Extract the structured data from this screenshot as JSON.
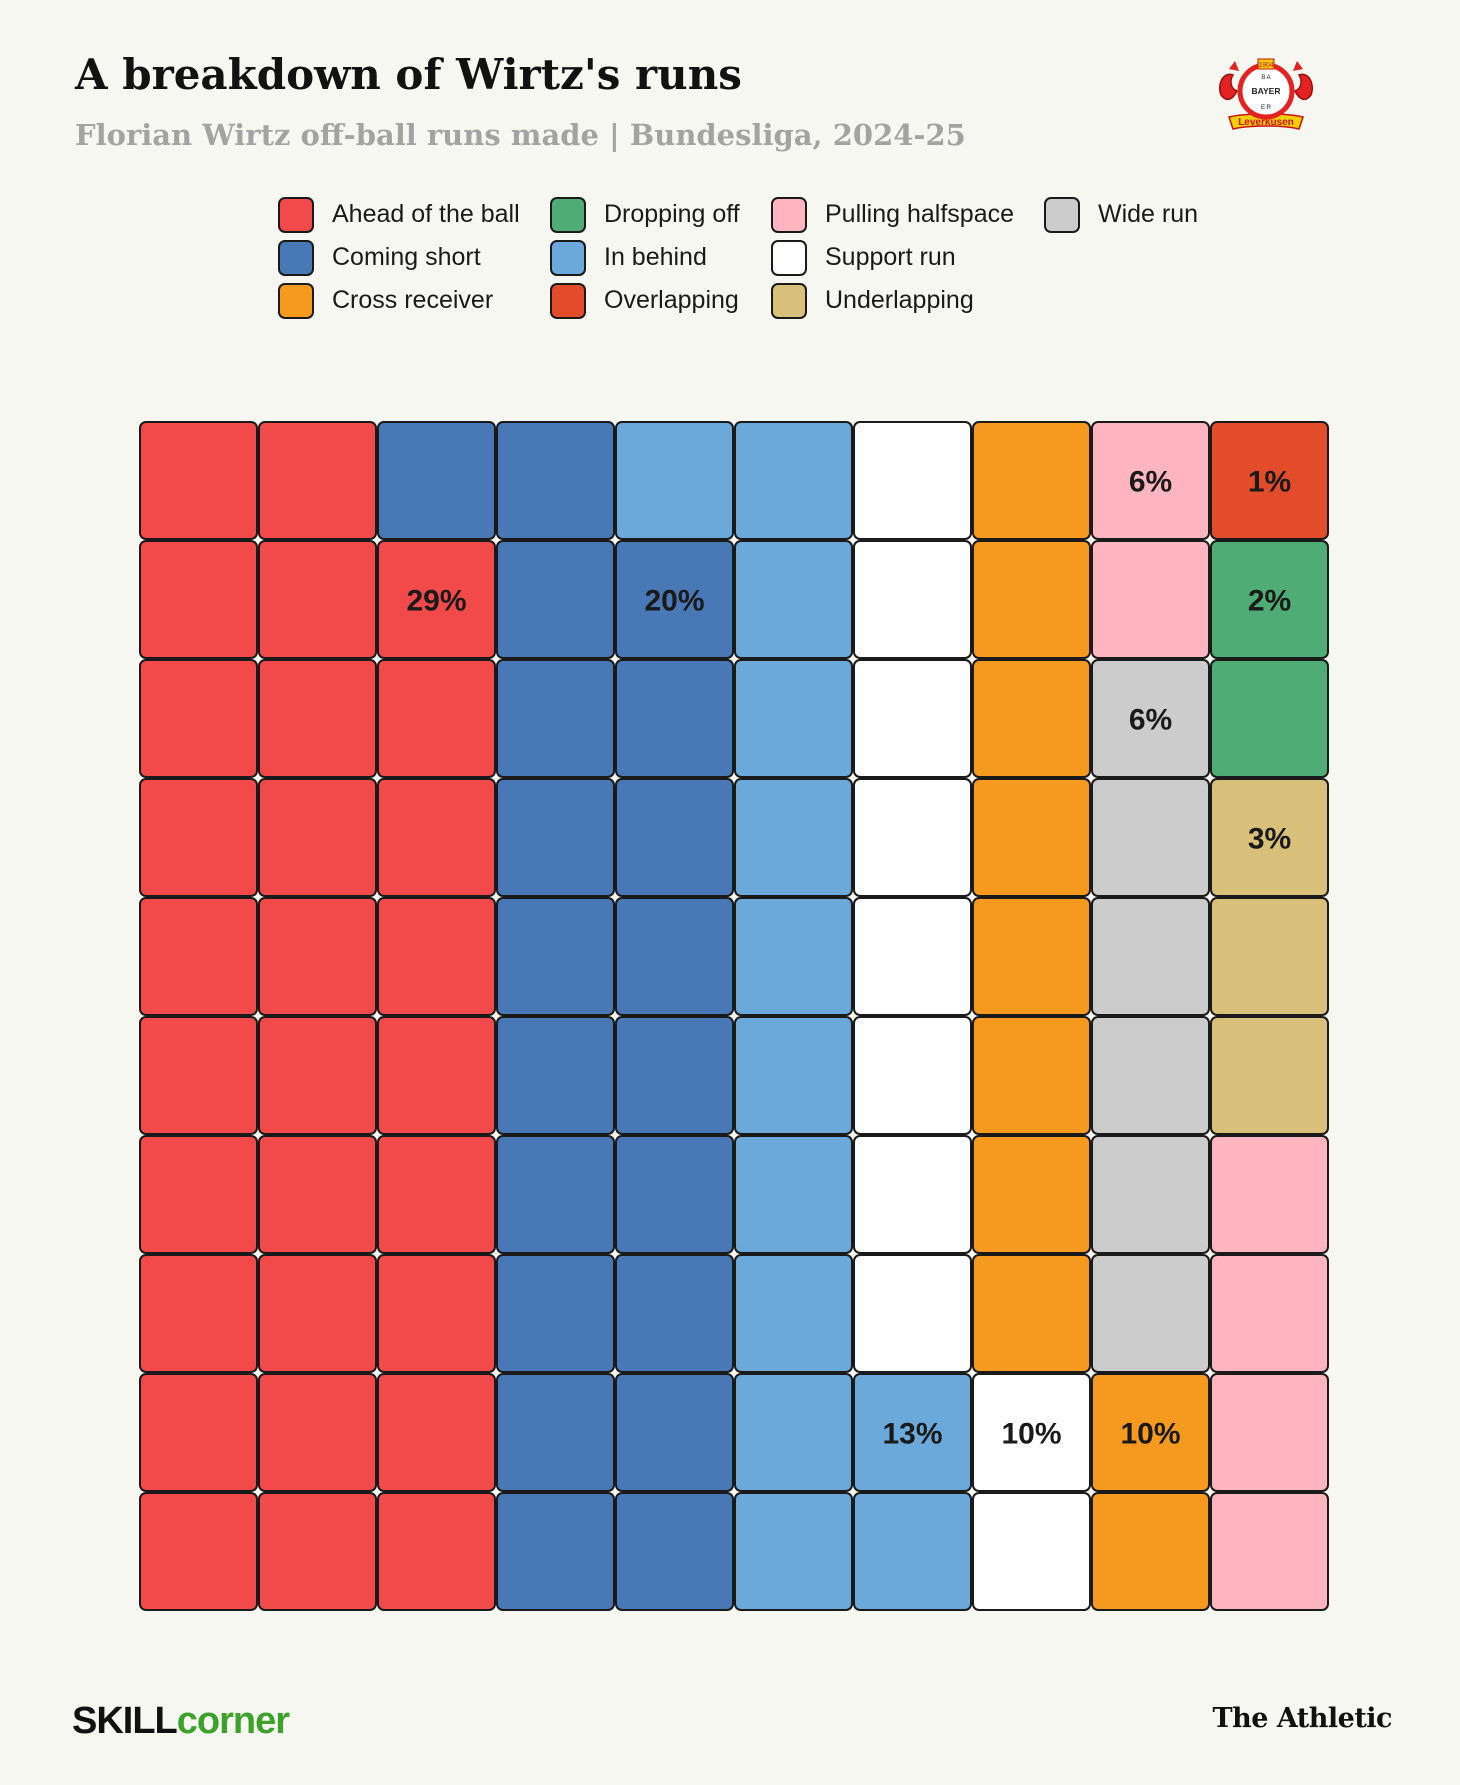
{
  "header": {
    "title": "A breakdown of Wirtz's runs",
    "subtitle": "Florian Wirtz off-ball runs made | Bundesliga, 2024-25"
  },
  "crest": {
    "year": "1904",
    "name": "BAYER",
    "club": "Leverkusen"
  },
  "legend": [
    {
      "label": "Ahead of the ball",
      "color": "#f24a4a"
    },
    {
      "label": "Dropping off",
      "color": "#4fac75"
    },
    {
      "label": "Pulling halfspace",
      "color": "#ffb5c0"
    },
    {
      "label": "Wide run",
      "color": "#cccccc"
    },
    {
      "label": "Coming short",
      "color": "#4878b5"
    },
    {
      "label": "In behind",
      "color": "#6aa9da"
    },
    {
      "label": "Support run",
      "color": "#ffffff"
    },
    {
      "label": "Cross receiver",
      "color": "#f59a1f"
    },
    {
      "label": "Overlapping",
      "color": "#e24c2b"
    },
    {
      "label": "Underlapping",
      "color": "#d8c07a"
    }
  ],
  "chart_data": {
    "type": "waffle",
    "title": "A breakdown of Wirtz's runs",
    "subtitle": "Florian Wirtz off-ball runs made | Bundesliga, 2024-25",
    "grid": {
      "rows": 10,
      "cols": 10,
      "fill_order": "column-major, bottom-to-top"
    },
    "series": [
      {
        "name": "Ahead of the ball",
        "value": 29,
        "label": "29%",
        "color": "#f24a4a"
      },
      {
        "name": "Coming short",
        "value": 20,
        "label": "20%",
        "color": "#4878b5"
      },
      {
        "name": "In behind",
        "value": 13,
        "label": "13%",
        "color": "#6aa9da"
      },
      {
        "name": "Support run",
        "value": 10,
        "label": "10%",
        "color": "#ffffff"
      },
      {
        "name": "Cross receiver",
        "value": 10,
        "label": "10%",
        "color": "#f59a1f"
      },
      {
        "name": "Wide run",
        "value": 6,
        "label": "6%",
        "color": "#cccccc"
      },
      {
        "name": "Pulling halfspace",
        "value": 6,
        "label": "6%",
        "color": "#ffb5c0"
      },
      {
        "name": "Underlapping",
        "value": 3,
        "label": "3%",
        "color": "#d8c07a"
      },
      {
        "name": "Dropping off",
        "value": 2,
        "label": "2%",
        "color": "#4fac75"
      },
      {
        "name": "Overlapping",
        "value": 1,
        "label": "1%",
        "color": "#e24c2b"
      }
    ]
  },
  "footer": {
    "source_a": "SKILL",
    "source_b": "corner",
    "publisher": "The Athletic"
  }
}
